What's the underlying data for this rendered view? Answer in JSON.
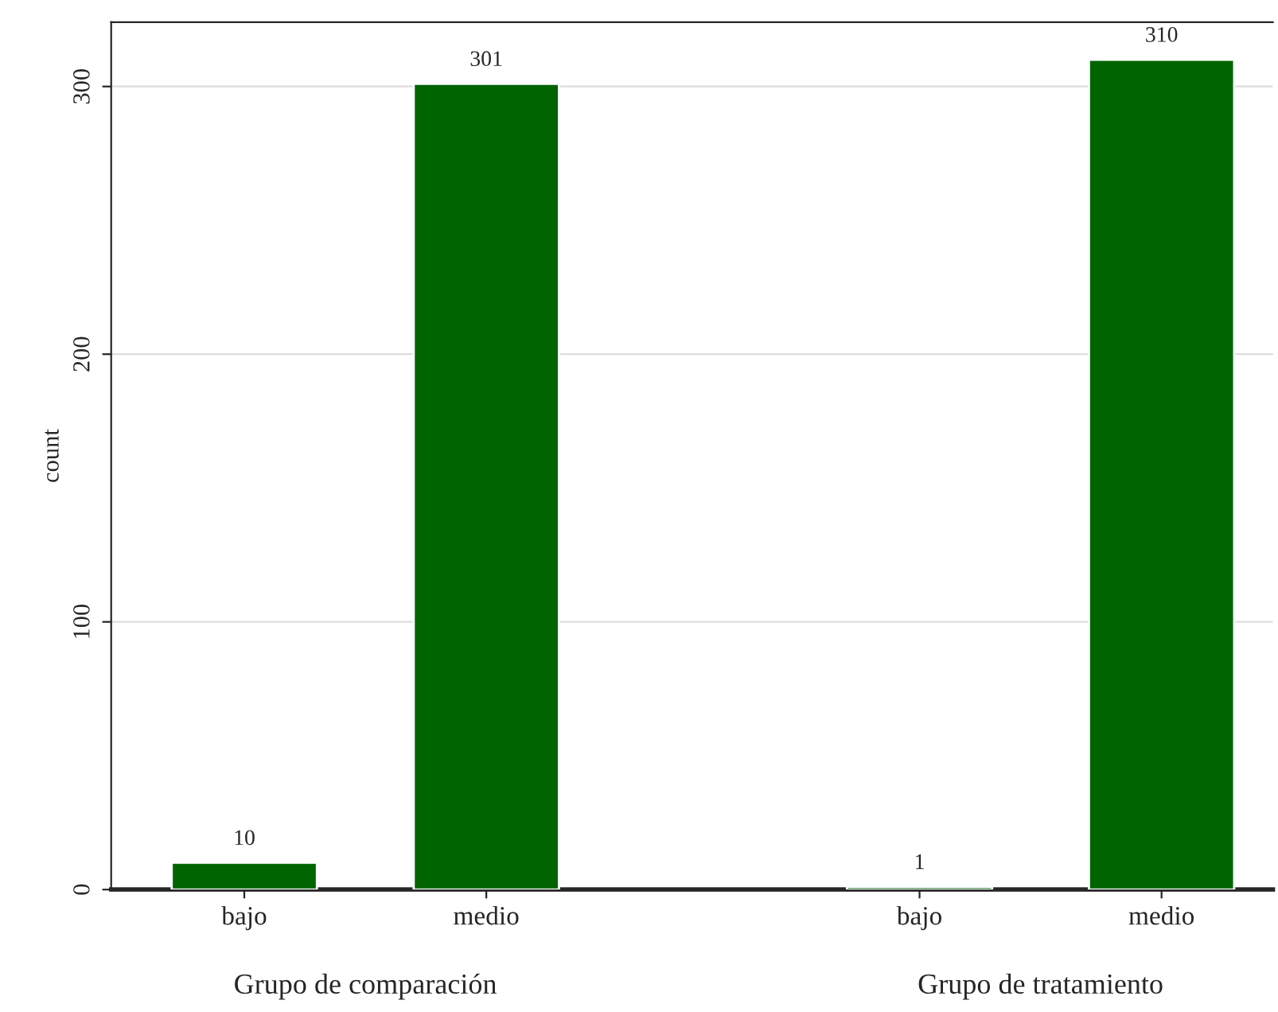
{
  "chart_data": {
    "type": "bar",
    "ylabel": "count",
    "categories": [
      "bajo",
      "medio",
      "bajo",
      "medio"
    ],
    "values": [
      10,
      301,
      1,
      310
    ],
    "color": "#006400",
    "data_labels": true,
    "ylim": [
      0,
      324
    ],
    "yticks": [
      0,
      100,
      200,
      300
    ],
    "grid": "y",
    "annotations": [
      "Grupo de comparación",
      "Grupo de tratamiento"
    ]
  }
}
